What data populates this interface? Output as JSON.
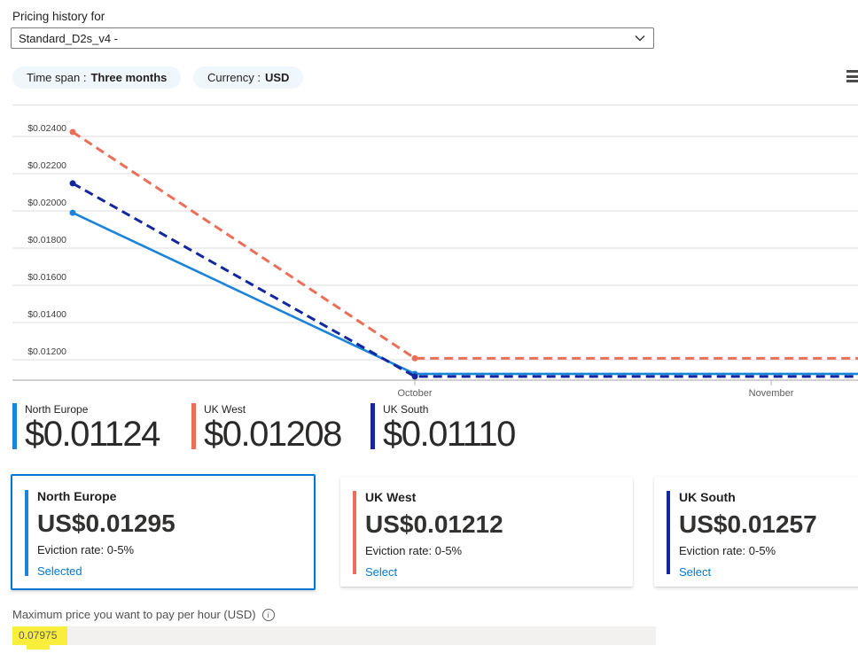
{
  "header": {
    "title": "Pricing history for",
    "vm_size": "Standard_D2s_v4 -",
    "time_span_label": "Time span :",
    "time_span_value": "Three months",
    "currency_label": "Currency :",
    "currency_value": "USD"
  },
  "chart_data": {
    "type": "line",
    "y_ticks": [
      {
        "label": "$0.02400",
        "value": 0.024
      },
      {
        "label": "$0.02200",
        "value": 0.022
      },
      {
        "label": "$0.02000",
        "value": 0.02
      },
      {
        "label": "$0.01800",
        "value": 0.018
      },
      {
        "label": "$0.01600",
        "value": 0.016
      },
      {
        "label": "$0.01400",
        "value": 0.014
      },
      {
        "label": "$0.01200",
        "value": 0.012
      }
    ],
    "x_ticks": [
      {
        "label": "October",
        "pos": 0.4357
      },
      {
        "label": "November",
        "pos": 0.8894
      }
    ],
    "ylim": [
      0.0109,
      0.0256
    ],
    "grid": true,
    "series": [
      {
        "name": "North Europe",
        "color": "#1b84d9",
        "dash": false,
        "points": [
          [
            0,
            0.0199
          ],
          [
            0.4357,
            0.01124
          ],
          [
            1,
            0.01124
          ]
        ],
        "markers": [
          0,
          1
        ]
      },
      {
        "name": "UK South",
        "color": "#13279e",
        "dash": true,
        "points": [
          [
            0,
            0.02148
          ],
          [
            0.4357,
            0.0111
          ],
          [
            1,
            0.0111
          ]
        ],
        "markers": [
          0,
          1
        ]
      },
      {
        "name": "UK West",
        "color": "#ed6e58",
        "dash": true,
        "points": [
          [
            0,
            0.02424
          ],
          [
            0.4357,
            0.01208
          ],
          [
            1,
            0.01208
          ]
        ],
        "markers": [
          0,
          1
        ]
      }
    ]
  },
  "legend": {
    "items": [
      {
        "name": "North Europe",
        "price": "$0.01124",
        "color": "#1b84d9"
      },
      {
        "name": "UK West",
        "price": "$0.01208",
        "color": "#ed6e58"
      },
      {
        "name": "UK South",
        "price": "$0.01110",
        "color": "#13279e"
      }
    ]
  },
  "cards": [
    {
      "region": "North Europe",
      "price": "US$0.01295",
      "eviction_rate": "Eviction rate: 0-5%",
      "action": "Selected",
      "selected": true,
      "accent": "#1b84d9"
    },
    {
      "region": "UK West",
      "price": "US$0.01212",
      "eviction_rate": "Eviction rate: 0-5%",
      "action": "Select",
      "selected": false,
      "accent": "#ed6e58"
    },
    {
      "region": "UK South",
      "price": "US$0.01257",
      "eviction_rate": "Eviction rate: 0-5%",
      "action": "Select",
      "selected": false,
      "accent": "#13279e"
    }
  ],
  "footer": {
    "max_price_label": "Maximum price you want to pay per hour (USD)",
    "max_price_value": "0.07975",
    "highlight_color": "#f9ee3b"
  },
  "colors": {
    "accent_blue": "#0078d4",
    "pill_background": "#eff6fc",
    "selected_card_border": "#0078d4"
  }
}
